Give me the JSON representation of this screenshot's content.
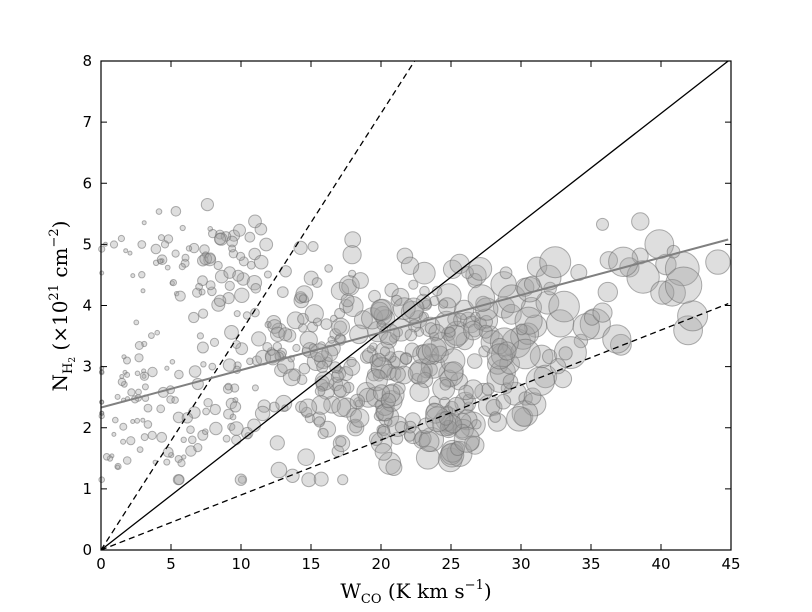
{
  "chart_data": {
    "type": "scatter",
    "title": "",
    "xlabel": {
      "main": "W",
      "sub": "CO",
      "rest": " (K km s",
      "sup": "−1",
      "close": ")"
    },
    "ylabel": {
      "main": "N",
      "sub": "H",
      "subsub": "2",
      "rest": " (×10",
      "sup1": "21",
      "mid": " cm",
      "sup2": "−2",
      "close": ")"
    },
    "xlim": [
      0,
      45
    ],
    "ylim": [
      0,
      8
    ],
    "xticks": [
      "0",
      "5",
      "10",
      "15",
      "20",
      "25",
      "30",
      "35",
      "40",
      "45"
    ],
    "yticks": [
      "0",
      "1",
      "2",
      "3",
      "4",
      "5",
      "6",
      "7",
      "8"
    ],
    "grid": false,
    "lines": [
      {
        "style": "dashed",
        "color": "#000000",
        "points": [
          [
            0,
            0
          ],
          [
            22.4,
            8
          ]
        ]
      },
      {
        "style": "solid",
        "color": "#000000",
        "points": [
          [
            0,
            0
          ],
          [
            44.8,
            8
          ]
        ]
      },
      {
        "style": "dashed",
        "color": "#000000",
        "points": [
          [
            0,
            0
          ],
          [
            44.8,
            4.03
          ]
        ]
      },
      {
        "style": "solid",
        "color": "#808080",
        "points": [
          [
            0,
            2.33
          ],
          [
            44.8,
            5.08
          ]
        ]
      }
    ],
    "marker_color": "#a0a0a0",
    "size_scale": "marker radius grows with W_CO",
    "points_clusters": [
      {
        "cx": 6,
        "cy": 4.9,
        "sx": 3.5,
        "sy": 0.35,
        "n": 60
      },
      {
        "cx": 3,
        "cy": 2.2,
        "sx": 2.5,
        "sy": 0.7,
        "n": 70
      },
      {
        "cx": 11,
        "cy": 3.0,
        "sx": 4.0,
        "sy": 1.0,
        "n": 110
      },
      {
        "cx": 17,
        "cy": 2.9,
        "sx": 3.0,
        "sy": 0.9,
        "n": 120
      },
      {
        "cx": 24,
        "cy": 3.2,
        "sx": 3.5,
        "sy": 0.7,
        "n": 140
      },
      {
        "cx": 24,
        "cy": 1.9,
        "sx": 2.0,
        "sy": 0.3,
        "n": 30
      },
      {
        "cx": 30,
        "cy": 3.6,
        "sx": 3.0,
        "sy": 0.6,
        "n": 50
      },
      {
        "cx": 38,
        "cy": 4.4,
        "sx": 3.5,
        "sy": 0.5,
        "n": 25
      }
    ]
  }
}
